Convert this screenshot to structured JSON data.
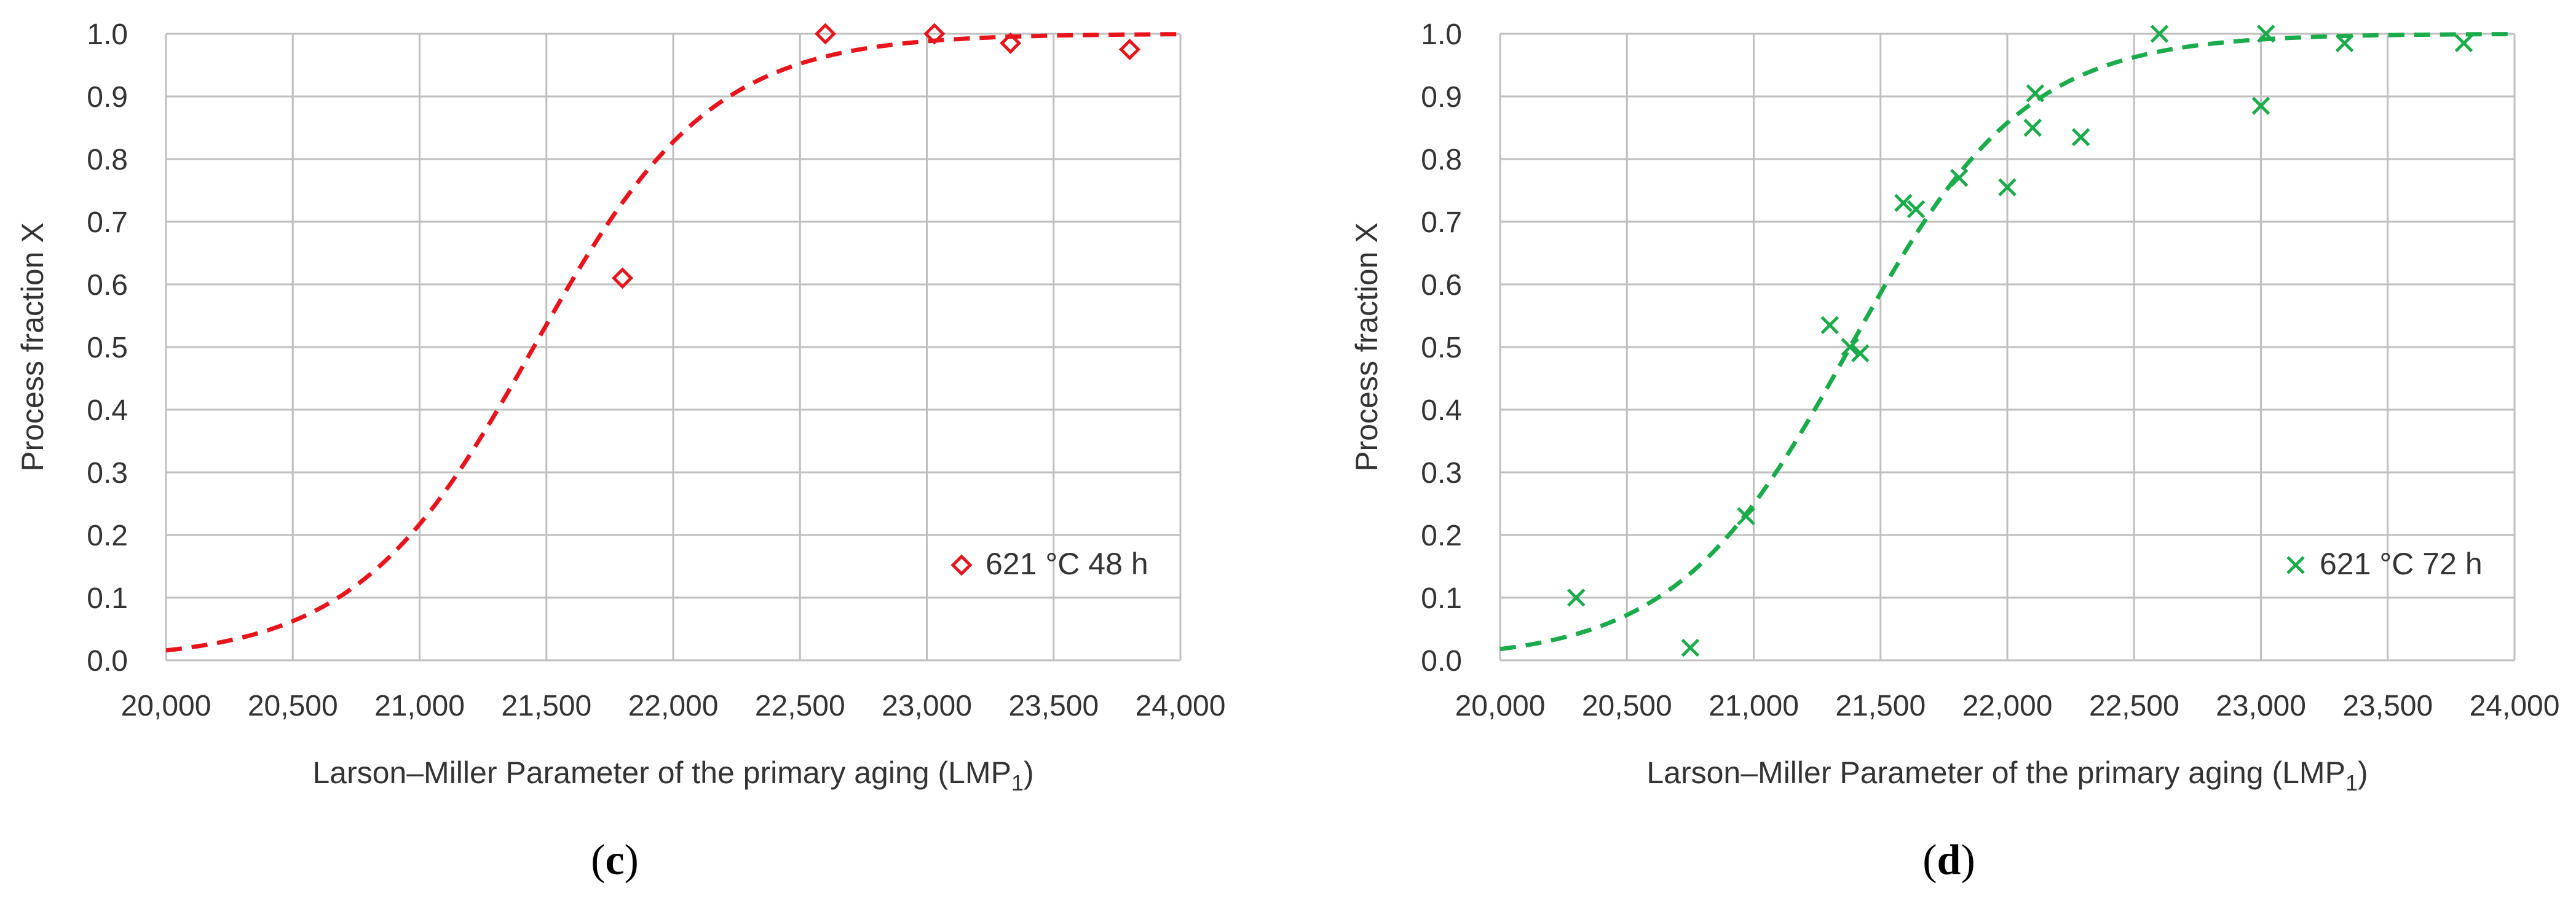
{
  "chart_data": [
    {
      "type": "scatter",
      "panel_label": {
        "open": "(",
        "letter": "c",
        "close": ")"
      },
      "xlabel": {
        "main": "Larson–Miller Parameter of the primary aging (LMP",
        "sub": "1",
        "close": ")"
      },
      "ylabel": "Process fraction X",
      "xlim": [
        20000,
        24000
      ],
      "ylim": [
        0.0,
        1.0
      ],
      "x_ticks": [
        20000,
        20500,
        21000,
        21500,
        22000,
        22500,
        23000,
        23500,
        24000
      ],
      "x_tick_labels": [
        "20,000",
        "20,500",
        "21,000",
        "21,500",
        "22,000",
        "22,500",
        "23,000",
        "23,500",
        "24,000"
      ],
      "y_ticks": [
        0.0,
        0.1,
        0.2,
        0.3,
        0.4,
        0.5,
        0.6,
        0.7,
        0.8,
        0.9,
        1.0
      ],
      "y_tick_labels": [
        "0.0",
        "0.1",
        "0.2",
        "0.3",
        "0.4",
        "0.5",
        "0.6",
        "0.7",
        "0.8",
        "0.9",
        "1.0"
      ],
      "grid": true,
      "legend_position": "bottom-right",
      "series": [
        {
          "name": "621 °C 48 h",
          "marker": "diamond",
          "color": "#e8141c",
          "points": [
            [
              21800,
              0.61
            ],
            [
              22600,
              1.0
            ],
            [
              23030,
              1.0
            ],
            [
              23330,
              0.985
            ],
            [
              23800,
              0.975
            ]
          ]
        }
      ],
      "fit": {
        "type": "sigmoid",
        "style": "dashed",
        "color": "#e8141c",
        "x0": 21450,
        "k": 0.00285,
        "x_start": 20000,
        "x_end": 24000
      }
    },
    {
      "type": "scatter",
      "panel_label": {
        "open": "(",
        "letter": "d",
        "close": ")"
      },
      "xlabel": {
        "main": "Larson–Miller Parameter of the primary aging (LMP",
        "sub": "1",
        "close": ")"
      },
      "ylabel": "Process fraction X",
      "xlim": [
        20000,
        24000
      ],
      "ylim": [
        0.0,
        1.0
      ],
      "x_ticks": [
        20000,
        20500,
        21000,
        21500,
        22000,
        22500,
        23000,
        23500,
        24000
      ],
      "x_tick_labels": [
        "20,000",
        "20,500",
        "21,000",
        "21,500",
        "22,000",
        "22,500",
        "23,000",
        "23,500",
        "24,000"
      ],
      "y_ticks": [
        0.0,
        0.1,
        0.2,
        0.3,
        0.4,
        0.5,
        0.6,
        0.7,
        0.8,
        0.9,
        1.0
      ],
      "y_tick_labels": [
        "0.0",
        "0.1",
        "0.2",
        "0.3",
        "0.4",
        "0.5",
        "0.6",
        "0.7",
        "0.8",
        "0.9",
        "1.0"
      ],
      "grid": true,
      "legend_position": "bottom-right",
      "series": [
        {
          "name": "621 °C 72 h",
          "marker": "x",
          "color": "#1aab4b",
          "points": [
            [
              20300,
              0.1
            ],
            [
              20750,
              0.02
            ],
            [
              20970,
              0.23
            ],
            [
              21300,
              0.535
            ],
            [
              21380,
              0.5
            ],
            [
              21420,
              0.49
            ],
            [
              21590,
              0.73
            ],
            [
              21640,
              0.72
            ],
            [
              21810,
              0.77
            ],
            [
              22000,
              0.755
            ],
            [
              22100,
              0.85
            ],
            [
              22110,
              0.905
            ],
            [
              22290,
              0.835
            ],
            [
              22600,
              1.0
            ],
            [
              23000,
              0.885
            ],
            [
              23020,
              1.0
            ],
            [
              23330,
              0.985
            ],
            [
              23800,
              0.985
            ]
          ]
        }
      ],
      "fit": {
        "type": "sigmoid",
        "style": "dashed",
        "color": "#1aab4b",
        "x0": 21380,
        "k": 0.0029,
        "x_start": 20000,
        "x_end": 24000
      }
    }
  ]
}
